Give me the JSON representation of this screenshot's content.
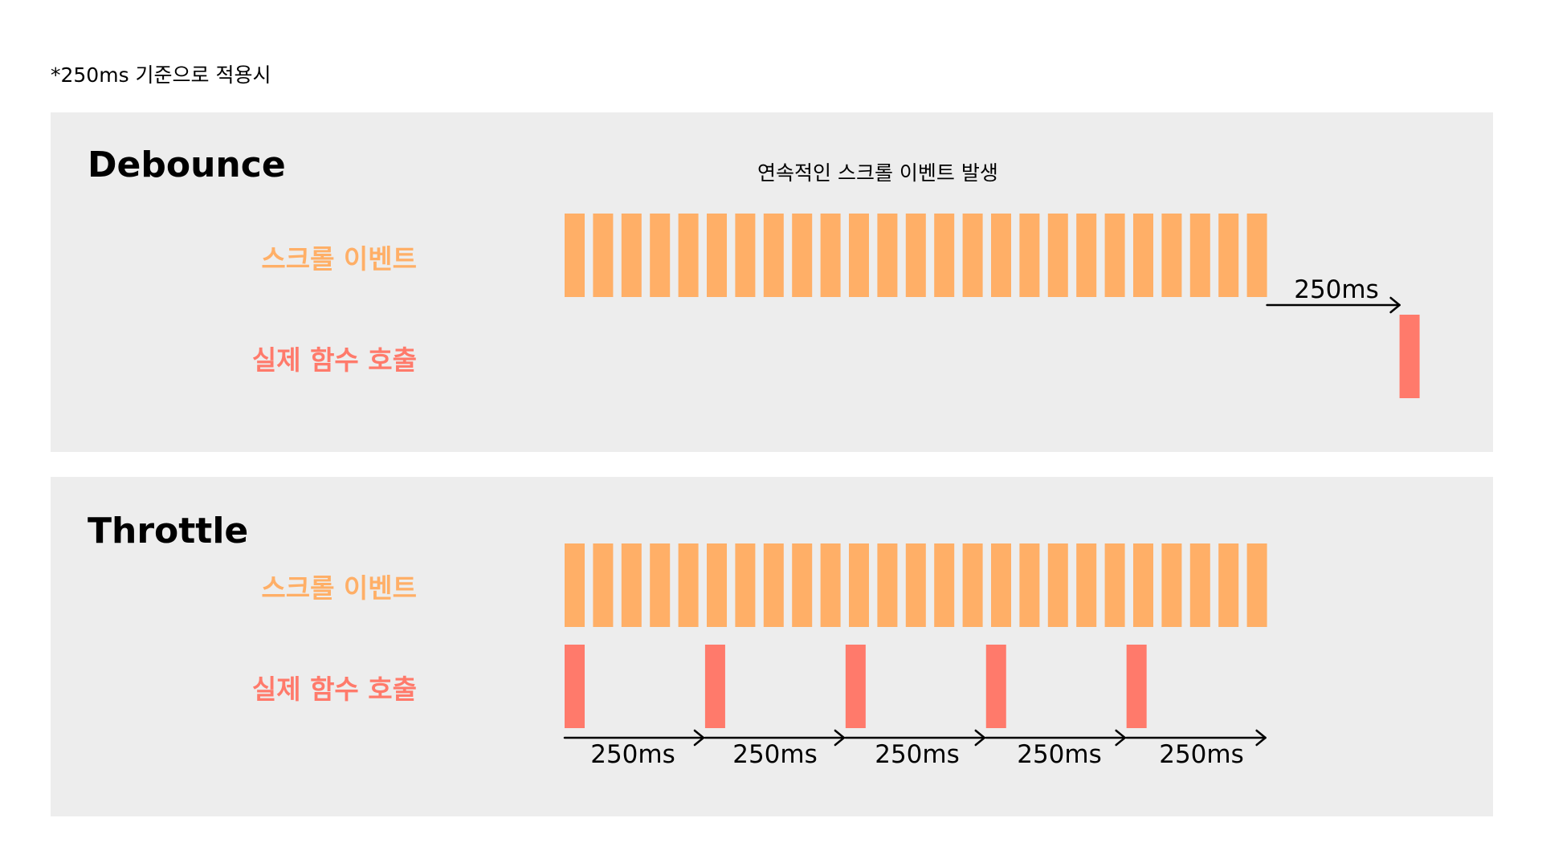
{
  "note": "*250ms 기준으로 적용시",
  "colors": {
    "event_bar": "#ffaf67",
    "call_bar": "#ff7a6b",
    "panel_bg": "#ededed",
    "arrow": "#000000"
  },
  "debounce": {
    "title": "Debounce",
    "caption": "연속적인 스크롤 이벤트 발생",
    "event_label": "스크롤 이벤트",
    "call_label": "실제 함수 호출",
    "event_count": 25,
    "call_count": 1,
    "interval_label": "250ms"
  },
  "throttle": {
    "title": "Throttle",
    "event_label": "스크롤 이벤트",
    "call_label": "실제 함수 호출",
    "event_count": 25,
    "call_count": 5,
    "interval_labels": [
      "250ms",
      "250ms",
      "250ms",
      "250ms",
      "250ms"
    ]
  }
}
